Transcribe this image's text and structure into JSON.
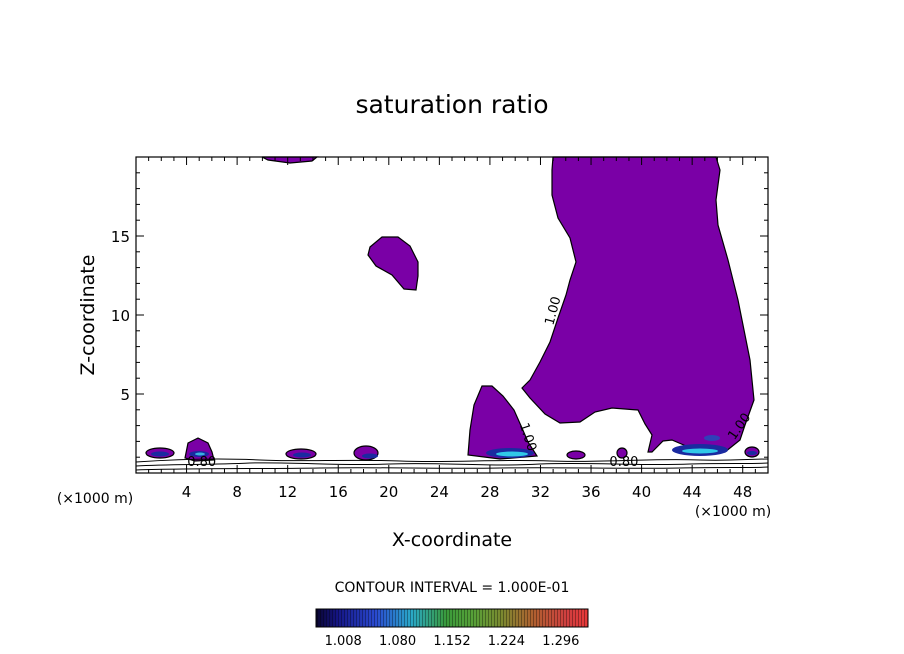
{
  "chart_data": {
    "type": "contour",
    "title": "saturation ratio",
    "xlabel": "X-coordinate",
    "ylabel": "Z-coordinate",
    "x_unit_left": "(×1000 m)",
    "x_unit_right": "(×1000 m)",
    "xlim": [
      0,
      50
    ],
    "ylim": [
      0,
      20
    ],
    "x_ticks": [
      4,
      8,
      12,
      16,
      20,
      24,
      28,
      32,
      36,
      40,
      44,
      48
    ],
    "y_ticks": [
      5,
      10,
      15
    ],
    "contour_labels": [
      {
        "text": "1.00",
        "x": 33.3,
        "y": 10.2,
        "rotate": -75
      },
      {
        "text": "1.00",
        "x": 30.7,
        "y": 2.2,
        "rotate": 72
      },
      {
        "text": "1.00",
        "x": 48.0,
        "y": 2.8,
        "rotate": -55
      },
      {
        "text": "0.80",
        "x": 5.2,
        "y": 0.45,
        "rotate": 0
      },
      {
        "text": "0.80",
        "x": 38.6,
        "y": 0.45,
        "rotate": 0
      }
    ],
    "contour_interval_text": "CONTOUR INTERVAL = 1.000E-01",
    "colorbar": {
      "labels": [
        "1.008",
        "1.080",
        "1.152",
        "1.224",
        "1.296"
      ],
      "range": [
        1.0,
        1.3
      ]
    },
    "fill_color": "#7a00a6"
  }
}
